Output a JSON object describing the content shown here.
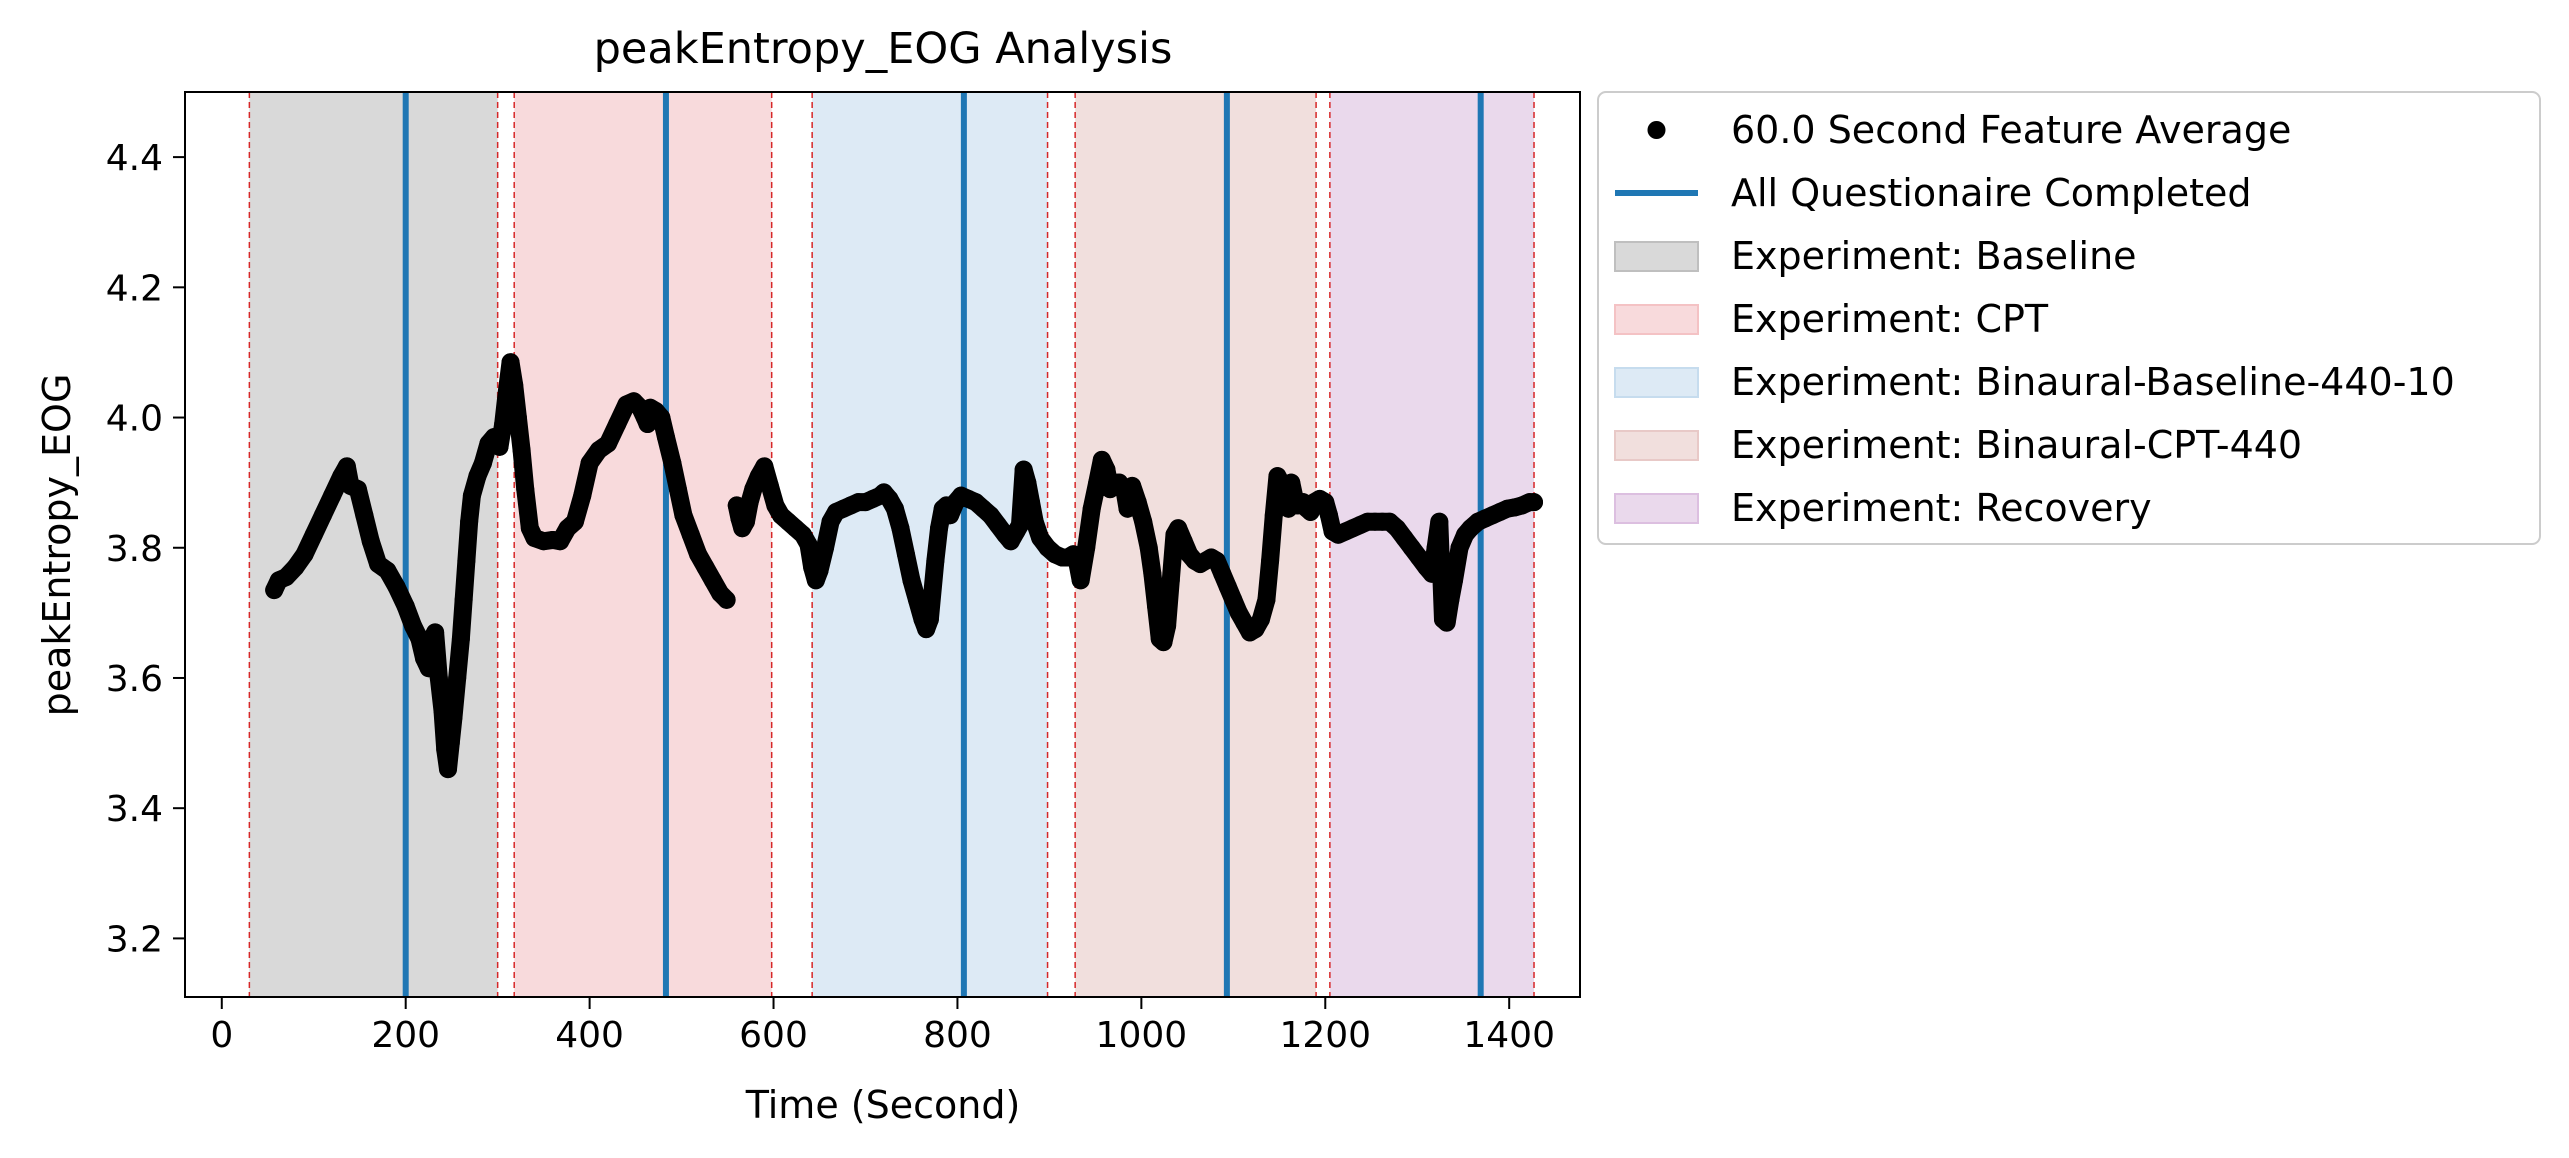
{
  "chart_data": {
    "type": "scatter",
    "title": "peakEntropy_EOG Analysis",
    "xlabel": "Time (Second)",
    "ylabel": "peakEntropy_EOG",
    "xlim": [
      -40,
      1477
    ],
    "ylim": [
      3.11,
      4.5
    ],
    "xticks": [
      0,
      200,
      400,
      600,
      800,
      1000,
      1200,
      1400
    ],
    "yticks": [
      3.2,
      3.4,
      3.6,
      3.8,
      4.0,
      4.2,
      4.4
    ],
    "xtick_labels": [
      "0",
      "200",
      "400",
      "600",
      "800",
      "1000",
      "1200",
      "1400"
    ],
    "ytick_labels": [
      "3.2",
      "3.4",
      "3.6",
      "3.8",
      "4.0",
      "4.2",
      "4.4"
    ],
    "grid": false,
    "legend_position": "outside-upper-right",
    "colors": {
      "points": "#000000",
      "questionnaire": "#1f77b4",
      "boundary": "#d62728",
      "baseline": "#bfbfbf",
      "cpt": "#f4c2c4",
      "binaural_baseline": "#c6dcee",
      "binaural_cpt": "#e8c9c7",
      "recovery": "#dcbfe0"
    },
    "legend": [
      {
        "label": "60.0 Second Feature Average",
        "kind": "marker",
        "color": "#000000"
      },
      {
        "label": "All Questionaire Completed",
        "kind": "line",
        "color": "#1f77b4"
      },
      {
        "label": "Experiment: Baseline",
        "kind": "patch",
        "color": "#bfbfbf"
      },
      {
        "label": "Experiment: CPT",
        "kind": "patch",
        "color": "#f4c2c4"
      },
      {
        "label": "Experiment: Binaural-Baseline-440-10",
        "kind": "patch",
        "color": "#c6dcee"
      },
      {
        "label": "Experiment: Binaural-CPT-440",
        "kind": "patch",
        "color": "#e8c9c7"
      },
      {
        "label": "Experiment: Recovery",
        "kind": "patch",
        "color": "#dcbfe0"
      }
    ],
    "phases": [
      {
        "name": "Baseline",
        "start": 30,
        "end": 300,
        "color": "#bfbfbf"
      },
      {
        "name": "CPT",
        "start": 318,
        "end": 598,
        "color": "#f4c2c4"
      },
      {
        "name": "Binaural-Baseline-440-10",
        "start": 642,
        "end": 898,
        "color": "#c6dcee"
      },
      {
        "name": "Binaural-CPT-440",
        "start": 928,
        "end": 1190,
        "color": "#e8c9c7"
      },
      {
        "name": "Recovery",
        "start": 1205,
        "end": 1427,
        "color": "#dcbfe0"
      }
    ],
    "phase_boundaries": [
      30,
      300,
      318,
      598,
      642,
      898,
      928,
      1190,
      1205,
      1427
    ],
    "questionnaire_times": [
      200,
      483,
      807,
      1093,
      1369
    ],
    "series": [
      {
        "name": "60.0 Second Feature Average",
        "points": [
          [
            57,
            3.735
          ],
          [
            62,
            3.75
          ],
          [
            70,
            3.755
          ],
          [
            80,
            3.77
          ],
          [
            90,
            3.79
          ],
          [
            100,
            3.82
          ],
          [
            110,
            3.85
          ],
          [
            120,
            3.88
          ],
          [
            130,
            3.91
          ],
          [
            136,
            3.925
          ],
          [
            140,
            3.895
          ],
          [
            148,
            3.89
          ],
          [
            155,
            3.85
          ],
          [
            162,
            3.81
          ],
          [
            170,
            3.775
          ],
          [
            180,
            3.765
          ],
          [
            190,
            3.74
          ],
          [
            200,
            3.71
          ],
          [
            208,
            3.68
          ],
          [
            215,
            3.66
          ],
          [
            220,
            3.63
          ],
          [
            225,
            3.615
          ],
          [
            228,
            3.66
          ],
          [
            232,
            3.67
          ],
          [
            236,
            3.6
          ],
          [
            240,
            3.55
          ],
          [
            243,
            3.49
          ],
          [
            246,
            3.46
          ],
          [
            249,
            3.5
          ],
          [
            252,
            3.54
          ],
          [
            256,
            3.6
          ],
          [
            260,
            3.66
          ],
          [
            263,
            3.72
          ],
          [
            266,
            3.78
          ],
          [
            269,
            3.84
          ],
          [
            272,
            3.88
          ],
          [
            278,
            3.91
          ],
          [
            284,
            3.93
          ],
          [
            290,
            3.96
          ],
          [
            296,
            3.97
          ],
          [
            302,
            3.955
          ],
          [
            306,
            3.99
          ],
          [
            310,
            4.04
          ],
          [
            314,
            4.085
          ],
          [
            318,
            4.05
          ],
          [
            322,
            4.0
          ],
          [
            326,
            3.95
          ],
          [
            330,
            3.89
          ],
          [
            335,
            3.83
          ],
          [
            340,
            3.815
          ],
          [
            350,
            3.81
          ],
          [
            360,
            3.812
          ],
          [
            368,
            3.81
          ],
          [
            376,
            3.83
          ],
          [
            384,
            3.84
          ],
          [
            392,
            3.88
          ],
          [
            400,
            3.93
          ],
          [
            410,
            3.95
          ],
          [
            420,
            3.96
          ],
          [
            430,
            3.99
          ],
          [
            440,
            4.02
          ],
          [
            448,
            4.025
          ],
          [
            455,
            4.015
          ],
          [
            460,
            4.0
          ],
          [
            463,
            3.99
          ],
          [
            466,
            4.015
          ],
          [
            472,
            4.01
          ],
          [
            478,
            4.0
          ],
          [
            483,
            3.97
          ],
          [
            490,
            3.93
          ],
          [
            496,
            3.89
          ],
          [
            502,
            3.85
          ],
          [
            510,
            3.82
          ],
          [
            518,
            3.79
          ],
          [
            526,
            3.77
          ],
          [
            534,
            3.75
          ],
          [
            542,
            3.73
          ],
          [
            549,
            3.72
          ],
          [
            560,
            3.865
          ],
          [
            563,
            3.845
          ],
          [
            566,
            3.83
          ],
          [
            570,
            3.84
          ],
          [
            574,
            3.87
          ],
          [
            578,
            3.89
          ],
          [
            584,
            3.91
          ],
          [
            590,
            3.925
          ],
          [
            596,
            3.895
          ],
          [
            602,
            3.865
          ],
          [
            608,
            3.85
          ],
          [
            616,
            3.84
          ],
          [
            624,
            3.83
          ],
          [
            632,
            3.82
          ],
          [
            638,
            3.805
          ],
          [
            642,
            3.77
          ],
          [
            646,
            3.75
          ],
          [
            650,
            3.765
          ],
          [
            656,
            3.8
          ],
          [
            662,
            3.84
          ],
          [
            668,
            3.855
          ],
          [
            676,
            3.86
          ],
          [
            684,
            3.865
          ],
          [
            692,
            3.87
          ],
          [
            700,
            3.87
          ],
          [
            708,
            3.875
          ],
          [
            716,
            3.88
          ],
          [
            720,
            3.885
          ],
          [
            726,
            3.875
          ],
          [
            732,
            3.86
          ],
          [
            738,
            3.83
          ],
          [
            744,
            3.79
          ],
          [
            750,
            3.75
          ],
          [
            756,
            3.72
          ],
          [
            762,
            3.69
          ],
          [
            766,
            3.675
          ],
          [
            770,
            3.69
          ],
          [
            776,
            3.78
          ],
          [
            780,
            3.83
          ],
          [
            784,
            3.86
          ],
          [
            788,
            3.865
          ],
          [
            792,
            3.85
          ],
          [
            798,
            3.87
          ],
          [
            804,
            3.88
          ],
          [
            812,
            3.875
          ],
          [
            820,
            3.87
          ],
          [
            828,
            3.86
          ],
          [
            836,
            3.85
          ],
          [
            844,
            3.835
          ],
          [
            852,
            3.82
          ],
          [
            858,
            3.81
          ],
          [
            864,
            3.825
          ],
          [
            868,
            3.835
          ],
          [
            872,
            3.92
          ],
          [
            876,
            3.9
          ],
          [
            880,
            3.87
          ],
          [
            884,
            3.84
          ],
          [
            890,
            3.815
          ],
          [
            898,
            3.8
          ],
          [
            906,
            3.79
          ],
          [
            914,
            3.785
          ],
          [
            920,
            3.785
          ],
          [
            926,
            3.79
          ],
          [
            930,
            3.78
          ],
          [
            934,
            3.75
          ],
          [
            940,
            3.8
          ],
          [
            946,
            3.86
          ],
          [
            952,
            3.9
          ],
          [
            957,
            3.935
          ],
          [
            962,
            3.92
          ],
          [
            966,
            3.89
          ],
          [
            970,
            3.9
          ],
          [
            976,
            3.9
          ],
          [
            982,
            3.885
          ],
          [
            985,
            3.86
          ],
          [
            990,
            3.895
          ],
          [
            996,
            3.87
          ],
          [
            1002,
            3.84
          ],
          [
            1008,
            3.8
          ],
          [
            1012,
            3.76
          ],
          [
            1016,
            3.71
          ],
          [
            1020,
            3.66
          ],
          [
            1024,
            3.655
          ],
          [
            1028,
            3.68
          ],
          [
            1032,
            3.75
          ],
          [
            1036,
            3.82
          ],
          [
            1040,
            3.83
          ],
          [
            1046,
            3.81
          ],
          [
            1052,
            3.79
          ],
          [
            1058,
            3.78
          ],
          [
            1064,
            3.775
          ],
          [
            1070,
            3.78
          ],
          [
            1076,
            3.785
          ],
          [
            1082,
            3.78
          ],
          [
            1088,
            3.76
          ],
          [
            1094,
            3.74
          ],
          [
            1100,
            3.72
          ],
          [
            1106,
            3.7
          ],
          [
            1112,
            3.685
          ],
          [
            1118,
            3.67
          ],
          [
            1124,
            3.675
          ],
          [
            1130,
            3.69
          ],
          [
            1136,
            3.72
          ],
          [
            1140,
            3.78
          ],
          [
            1144,
            3.85
          ],
          [
            1148,
            3.91
          ],
          [
            1152,
            3.9
          ],
          [
            1156,
            3.87
          ],
          [
            1160,
            3.86
          ],
          [
            1163,
            3.9
          ],
          [
            1166,
            3.88
          ],
          [
            1170,
            3.865
          ],
          [
            1176,
            3.87
          ],
          [
            1180,
            3.86
          ],
          [
            1184,
            3.855
          ],
          [
            1188,
            3.87
          ],
          [
            1194,
            3.875
          ],
          [
            1200,
            3.87
          ],
          [
            1204,
            3.85
          ],
          [
            1208,
            3.825
          ],
          [
            1214,
            3.82
          ],
          [
            1222,
            3.825
          ],
          [
            1230,
            3.83
          ],
          [
            1238,
            3.835
          ],
          [
            1246,
            3.84
          ],
          [
            1254,
            3.84
          ],
          [
            1262,
            3.84
          ],
          [
            1270,
            3.84
          ],
          [
            1278,
            3.83
          ],
          [
            1286,
            3.815
          ],
          [
            1294,
            3.8
          ],
          [
            1302,
            3.785
          ],
          [
            1310,
            3.77
          ],
          [
            1316,
            3.76
          ],
          [
            1320,
            3.8
          ],
          [
            1324,
            3.84
          ],
          [
            1328,
            3.69
          ],
          [
            1332,
            3.685
          ],
          [
            1336,
            3.72
          ],
          [
            1340,
            3.75
          ],
          [
            1346,
            3.8
          ],
          [
            1352,
            3.82
          ],
          [
            1358,
            3.83
          ],
          [
            1366,
            3.84
          ],
          [
            1374,
            3.845
          ],
          [
            1382,
            3.85
          ],
          [
            1390,
            3.855
          ],
          [
            1398,
            3.86
          ],
          [
            1406,
            3.862
          ],
          [
            1414,
            3.865
          ],
          [
            1422,
            3.87
          ],
          [
            1427,
            3.87
          ]
        ]
      }
    ]
  }
}
